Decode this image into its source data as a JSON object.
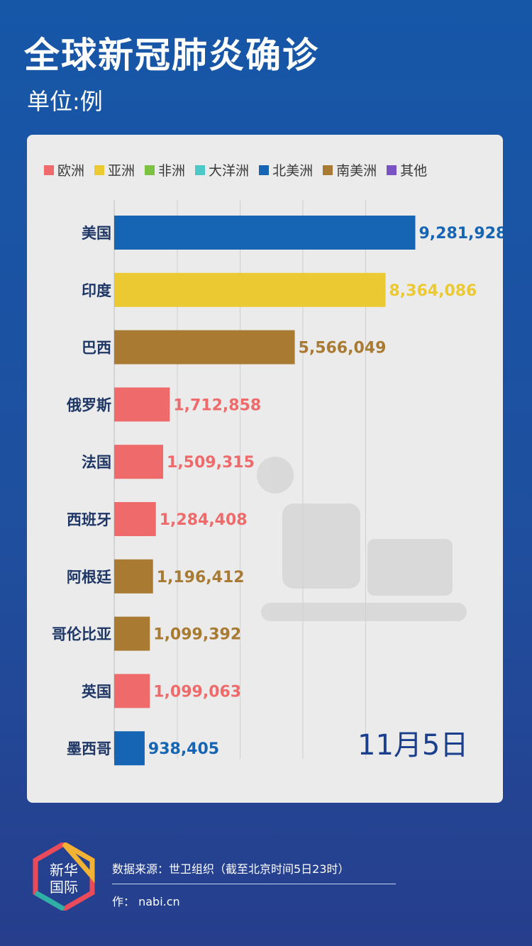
{
  "title": "全球新冠肺炎确诊",
  "unit": "单位:例",
  "date": "11月5日",
  "legend": [
    {
      "label": "欧洲",
      "color": "#ef6b6b"
    },
    {
      "label": "亚洲",
      "color": "#ebc932"
    },
    {
      "label": "非洲",
      "color": "#7cc242"
    },
    {
      "label": "大洋洲",
      "color": "#4cc8c8"
    },
    {
      "label": "北美洲",
      "color": "#1565b4"
    },
    {
      "label": "南美洲",
      "color": "#a87a32"
    },
    {
      "label": "其他",
      "color": "#7b52c4"
    }
  ],
  "chart_data": {
    "type": "bar",
    "orientation": "horizontal",
    "categories": [
      "美国",
      "印度",
      "巴西",
      "俄罗斯",
      "法国",
      "西班牙",
      "阿根廷",
      "哥伦比亚",
      "英国",
      "墨西哥"
    ],
    "values": [
      9281928,
      8364086,
      5566049,
      1712858,
      1509315,
      1284408,
      1196412,
      1099392,
      1099063,
      938405
    ],
    "value_labels": [
      "9,281,928",
      "8,364,086",
      "5,566,049",
      "1,712,858",
      "1,509,315",
      "1,284,408",
      "1,196,412",
      "1,099,392",
      "1,099,063",
      "938,405"
    ],
    "regions": [
      "北美洲",
      "亚洲",
      "南美洲",
      "欧洲",
      "欧洲",
      "欧洲",
      "南美洲",
      "南美洲",
      "欧洲",
      "北美洲"
    ],
    "xlim": [
      0,
      10000000
    ],
    "grid": true
  },
  "footer": {
    "logo_text_top": "新华",
    "logo_text_bottom": "国际",
    "source": "数据来源：世卫组织（截至北京时间5日23时）",
    "credit": "作：  nabi.cn"
  }
}
